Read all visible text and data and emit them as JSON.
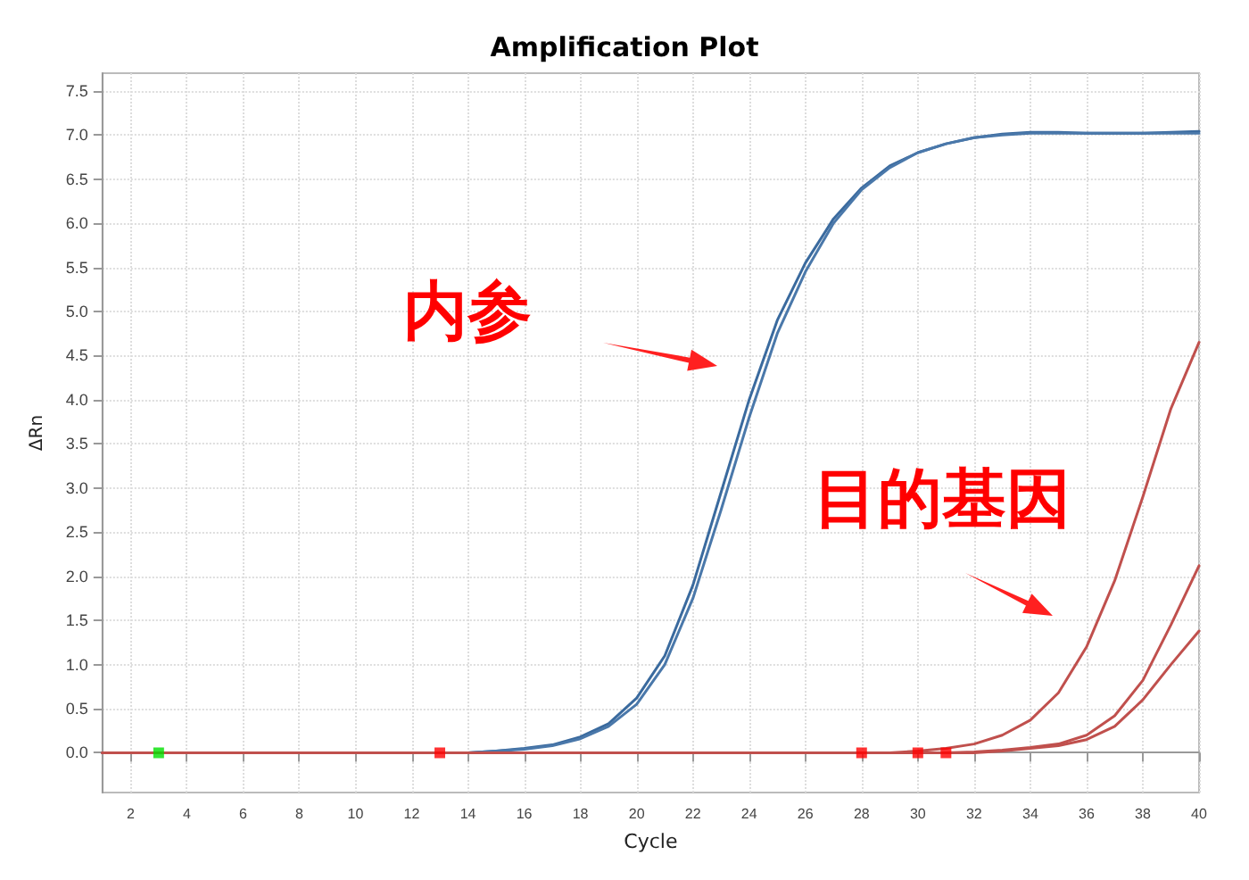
{
  "chart_data": {
    "type": "line",
    "title": "Amplification Plot",
    "xlabel": "Cycle",
    "ylabel": "ΔRn",
    "xlim": [
      1,
      40
    ],
    "xticks": [
      2,
      4,
      6,
      8,
      10,
      12,
      14,
      16,
      18,
      20,
      22,
      24,
      26,
      28,
      30,
      32,
      34,
      36,
      38,
      40
    ],
    "ylim": [
      -0.45,
      7.7
    ],
    "yticks": [
      {
        "value": 0,
        "label": "0.0"
      },
      0.5,
      {
        "value": 1,
        "label": "1.0"
      },
      1.5,
      {
        "value": 2,
        "label": "2.0"
      },
      2.5,
      {
        "value": 3,
        "label": "3.0"
      },
      3.5,
      {
        "value": 4,
        "label": "4.0"
      },
      4.5,
      {
        "value": 5,
        "label": "5.0"
      },
      5.5,
      {
        "value": 6,
        "label": "6.0"
      },
      6.5,
      {
        "value": 7,
        "label": "7.0"
      },
      7.5
    ],
    "grid": true,
    "marker": "none",
    "line_style": "solid",
    "annotations": [
      "内参",
      "目的基因"
    ],
    "series": [
      {
        "color": "#3a6a9e",
        "x": [
          1,
          8,
          14,
          15,
          16,
          17,
          18,
          19,
          20,
          21,
          22,
          23,
          24,
          25,
          26,
          27,
          28,
          29,
          30,
          31,
          32,
          33,
          34,
          35,
          36,
          37,
          38,
          39,
          40
        ],
        "values": [
          0,
          0,
          0,
          0.02,
          0.05,
          0.09,
          0.18,
          0.33,
          0.62,
          1.1,
          1.9,
          2.95,
          4.0,
          4.9,
          5.55,
          6.05,
          6.4,
          6.65,
          6.8,
          6.9,
          6.97,
          7.01,
          7.03,
          7.03,
          7.02,
          7.02,
          7.02,
          7.03,
          7.04
        ]
      },
      {
        "color": "#4a78aa",
        "x": [
          1,
          8,
          14,
          15,
          16,
          17,
          18,
          19,
          20,
          21,
          22,
          23,
          24,
          25,
          26,
          27,
          28,
          29,
          30,
          31,
          32,
          33,
          34,
          35,
          36,
          37,
          38,
          39,
          40
        ],
        "values": [
          0,
          0,
          0,
          0.02,
          0.04,
          0.08,
          0.16,
          0.3,
          0.55,
          1.0,
          1.75,
          2.75,
          3.8,
          4.75,
          5.45,
          6.0,
          6.38,
          6.63,
          6.8,
          6.9,
          6.97,
          7.0,
          7.02,
          7.02,
          7.02,
          7.02,
          7.02,
          7.02,
          7.02
        ]
      },
      {
        "color": "#c0504d",
        "x": [
          1,
          28,
          29,
          30,
          31,
          32,
          33,
          34,
          35,
          36,
          37,
          38,
          39,
          40
        ],
        "values": [
          0,
          0,
          0,
          0.02,
          0.05,
          0.1,
          0.2,
          0.37,
          0.68,
          1.2,
          1.95,
          2.9,
          3.9,
          4.65
        ]
      },
      {
        "color": "#c0504d",
        "x": [
          1,
          31,
          32,
          33,
          34,
          35,
          36,
          37,
          38,
          39,
          40
        ],
        "values": [
          0,
          0,
          0.01,
          0.03,
          0.06,
          0.1,
          0.2,
          0.42,
          0.82,
          1.45,
          2.12
        ]
      },
      {
        "color": "#c0504d",
        "x": [
          1,
          32,
          33,
          34,
          35,
          36,
          37,
          38,
          39,
          40
        ],
        "values": [
          0,
          0,
          0.02,
          0.05,
          0.08,
          0.15,
          0.3,
          0.6,
          1.0,
          1.38
        ]
      },
      {
        "type": "scatter",
        "marker": "square",
        "x": [
          3,
          13,
          28,
          30,
          31
        ],
        "values": [
          0,
          0,
          0,
          0,
          0
        ],
        "colors": [
          "#00e000",
          "#ff0000",
          "#ff0000",
          "#ff0000",
          "#ff0000"
        ]
      }
    ]
  }
}
